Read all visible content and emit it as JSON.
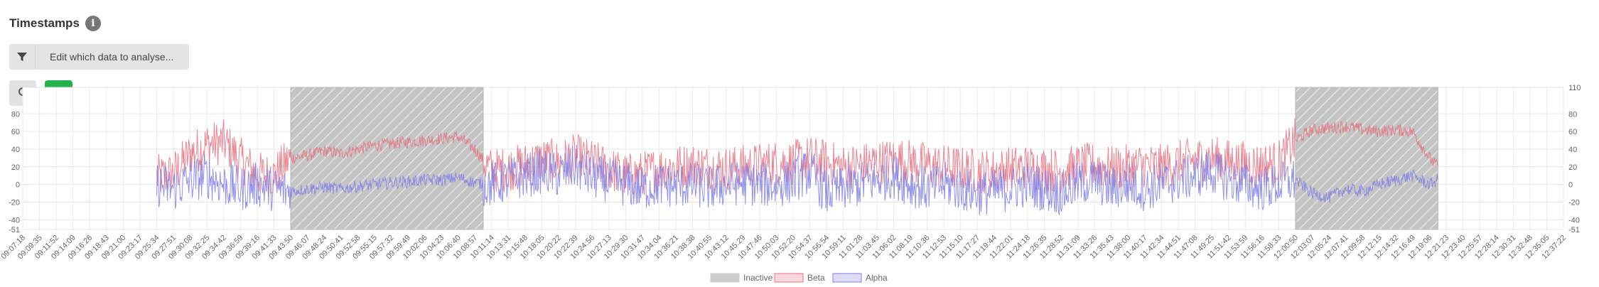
{
  "header": {
    "title": "Timestamps",
    "info_icon": "info-icon"
  },
  "filter": {
    "label": "Edit which data to analyse...",
    "icon": "filter-icon"
  },
  "toolbar": {
    "refresh_icon": "refresh-icon",
    "edit_icon": "edit-icon"
  },
  "colors": {
    "inactive": "#cccccc",
    "beta": "#e8707f",
    "alpha": "#7f7fe8",
    "edit_button": "#22b34a"
  },
  "chart_data": {
    "type": "line",
    "x_ticks": [
      "09:07:18",
      "09:09:35",
      "09:11:52",
      "09:14:09",
      "09:16:26",
      "09:18:43",
      "09:21:00",
      "09:23:17",
      "09:25:34",
      "09:27:51",
      "09:30:08",
      "09:32:25",
      "09:34:42",
      "09:36:59",
      "09:39:16",
      "09:41:33",
      "09:43:50",
      "09:46:07",
      "09:48:24",
      "09:50:41",
      "09:52:58",
      "09:55:15",
      "09:57:32",
      "09:59:49",
      "10:02:06",
      "10:04:23",
      "10:06:40",
      "10:08:57",
      "10:11:14",
      "10:13:31",
      "10:15:48",
      "10:18:05",
      "10:20:22",
      "10:22:39",
      "10:24:56",
      "10:27:13",
      "10:29:30",
      "10:31:47",
      "10:34:04",
      "10:36:21",
      "10:38:38",
      "10:40:55",
      "10:43:12",
      "10:45:29",
      "10:47:46",
      "10:50:03",
      "10:52:20",
      "10:54:37",
      "10:56:54",
      "10:59:11",
      "11:01:28",
      "11:03:45",
      "11:06:02",
      "11:08:19",
      "11:10:36",
      "11:12:53",
      "11:15:10",
      "11:17:27",
      "11:19:44",
      "11:22:01",
      "11:24:18",
      "11:26:35",
      "11:28:52",
      "11:31:09",
      "11:33:26",
      "11:35:43",
      "11:38:00",
      "11:40:17",
      "11:42:34",
      "11:44:51",
      "11:47:08",
      "11:49:25",
      "11:51:42",
      "11:53:59",
      "11:56:16",
      "11:58:33",
      "12:00:50",
      "12:03:07",
      "12:05:24",
      "12:07:41",
      "12:09:58",
      "12:12:15",
      "12:14:32",
      "12:16:49",
      "12:19:06",
      "12:21:23",
      "12:23:40",
      "12:25:57",
      "12:28:14",
      "12:30:31",
      "12:32:48",
      "12:35:05",
      "12:37:22"
    ],
    "y_ticks_left": [
      "80",
      "60",
      "40",
      "20",
      "0",
      "-20",
      "-40",
      "-51"
    ],
    "y_ticks_right": [
      "110",
      "80",
      "60",
      "40",
      "20",
      "0",
      "-20",
      "-40",
      "-51"
    ],
    "ylim": [
      -51,
      110
    ],
    "inactive_ranges": [
      [
        "09:43:50",
        "10:10:05"
      ],
      [
        "12:00:50",
        "12:20:15"
      ]
    ],
    "data_range": [
      "09:25:34",
      "12:20:15"
    ],
    "series": [
      {
        "name": "Beta",
        "points": [
          [
            "09:25:34",
            8
          ],
          [
            "09:27:51",
            12
          ],
          [
            "09:30:08",
            35
          ],
          [
            "09:32:25",
            45
          ],
          [
            "09:34:42",
            48
          ],
          [
            "09:36:59",
            28
          ],
          [
            "09:39:16",
            12
          ],
          [
            "09:41:33",
            10
          ],
          [
            "09:43:50",
            30
          ],
          [
            "09:46:07",
            33
          ],
          [
            "09:48:24",
            38
          ],
          [
            "09:50:41",
            35
          ],
          [
            "09:52:58",
            40
          ],
          [
            "09:55:15",
            44
          ],
          [
            "09:57:32",
            46
          ],
          [
            "09:59:49",
            48
          ],
          [
            "10:02:06",
            50
          ],
          [
            "10:04:23",
            52
          ],
          [
            "10:06:40",
            54
          ],
          [
            "10:08:57",
            40
          ],
          [
            "10:11:14",
            15
          ],
          [
            "10:13:31",
            18
          ],
          [
            "10:15:48",
            22
          ],
          [
            "10:18:05",
            28
          ],
          [
            "10:20:22",
            25
          ],
          [
            "10:22:39",
            32
          ],
          [
            "10:24:56",
            25
          ],
          [
            "10:27:13",
            18
          ],
          [
            "10:29:30",
            10
          ],
          [
            "10:31:47",
            12
          ],
          [
            "10:34:04",
            18
          ],
          [
            "10:36:21",
            20
          ],
          [
            "10:38:38",
            22
          ],
          [
            "10:40:55",
            20
          ],
          [
            "10:43:12",
            18
          ],
          [
            "10:45:29",
            20
          ],
          [
            "10:47:46",
            22
          ],
          [
            "10:50:03",
            25
          ],
          [
            "10:52:20",
            25
          ],
          [
            "10:54:37",
            30
          ],
          [
            "10:56:54",
            25
          ],
          [
            "10:59:11",
            20
          ],
          [
            "11:01:28",
            22
          ],
          [
            "11:03:45",
            25
          ],
          [
            "11:06:02",
            28
          ],
          [
            "11:08:19",
            26
          ],
          [
            "11:10:36",
            22
          ],
          [
            "11:12:53",
            20
          ],
          [
            "11:15:10",
            18
          ],
          [
            "11:17:27",
            15
          ],
          [
            "11:19:44",
            15
          ],
          [
            "11:22:01",
            18
          ],
          [
            "11:24:18",
            20
          ],
          [
            "11:26:35",
            18
          ],
          [
            "11:28:52",
            15
          ],
          [
            "11:31:09",
            20
          ],
          [
            "11:33:26",
            22
          ],
          [
            "11:35:43",
            18
          ],
          [
            "11:38:00",
            20
          ],
          [
            "11:40:17",
            22
          ],
          [
            "11:42:34",
            20
          ],
          [
            "11:44:51",
            25
          ],
          [
            "11:47:08",
            28
          ],
          [
            "11:49:25",
            30
          ],
          [
            "11:51:42",
            26
          ],
          [
            "11:53:59",
            24
          ],
          [
            "11:56:16",
            22
          ],
          [
            "11:58:33",
            25
          ],
          [
            "12:00:50",
            50
          ],
          [
            "12:03:07",
            62
          ],
          [
            "12:05:24",
            64
          ],
          [
            "12:07:41",
            66
          ],
          [
            "12:09:58",
            62
          ],
          [
            "12:12:15",
            60
          ],
          [
            "12:14:32",
            62
          ],
          [
            "12:16:49",
            60
          ],
          [
            "12:19:06",
            30
          ],
          [
            "12:20:15",
            20
          ]
        ]
      },
      {
        "name": "Alpha",
        "points": [
          [
            "09:25:34",
            0
          ],
          [
            "09:27:51",
            -5
          ],
          [
            "09:30:08",
            5
          ],
          [
            "09:32:25",
            10
          ],
          [
            "09:34:42",
            0
          ],
          [
            "09:36:59",
            -5
          ],
          [
            "09:39:16",
            0
          ],
          [
            "09:41:33",
            -5
          ],
          [
            "09:43:50",
            -8
          ],
          [
            "09:46:07",
            -5
          ],
          [
            "09:48:24",
            -3
          ],
          [
            "09:50:41",
            -5
          ],
          [
            "09:52:58",
            -2
          ],
          [
            "09:55:15",
            0
          ],
          [
            "09:57:32",
            2
          ],
          [
            "09:59:49",
            3
          ],
          [
            "10:02:06",
            5
          ],
          [
            "10:04:23",
            5
          ],
          [
            "10:06:40",
            8
          ],
          [
            "10:08:57",
            2
          ],
          [
            "10:11:14",
            0
          ],
          [
            "10:13:31",
            5
          ],
          [
            "10:15:48",
            10
          ],
          [
            "10:18:05",
            15
          ],
          [
            "10:20:22",
            10
          ],
          [
            "10:22:39",
            20
          ],
          [
            "10:24:56",
            8
          ],
          [
            "10:27:13",
            5
          ],
          [
            "10:29:30",
            0
          ],
          [
            "10:31:47",
            -5
          ],
          [
            "10:34:04",
            0
          ],
          [
            "10:36:21",
            -2
          ],
          [
            "10:38:38",
            0
          ],
          [
            "10:40:55",
            -5
          ],
          [
            "10:43:12",
            0
          ],
          [
            "10:45:29",
            2
          ],
          [
            "10:47:46",
            0
          ],
          [
            "10:50:03",
            -2
          ],
          [
            "10:52:20",
            5
          ],
          [
            "10:54:37",
            15
          ],
          [
            "10:56:54",
            -10
          ],
          [
            "10:59:11",
            -5
          ],
          [
            "11:01:28",
            0
          ],
          [
            "11:03:45",
            5
          ],
          [
            "11:06:02",
            10
          ],
          [
            "11:08:19",
            0
          ],
          [
            "11:10:36",
            -5
          ],
          [
            "11:12:53",
            0
          ],
          [
            "11:15:10",
            -5
          ],
          [
            "11:17:27",
            -10
          ],
          [
            "11:19:44",
            -8
          ],
          [
            "11:22:01",
            -5
          ],
          [
            "11:24:18",
            0
          ],
          [
            "11:26:35",
            -5
          ],
          [
            "11:28:52",
            -10
          ],
          [
            "11:31:09",
            0
          ],
          [
            "11:33:26",
            5
          ],
          [
            "11:35:43",
            -5
          ],
          [
            "11:38:00",
            0
          ],
          [
            "11:40:17",
            -5
          ],
          [
            "11:42:34",
            0
          ],
          [
            "11:44:51",
            5
          ],
          [
            "11:47:08",
            10
          ],
          [
            "11:49:25",
            15
          ],
          [
            "11:51:42",
            5
          ],
          [
            "11:53:59",
            0
          ],
          [
            "11:56:16",
            -5
          ],
          [
            "11:58:33",
            0
          ],
          [
            "12:00:50",
            5
          ],
          [
            "12:03:07",
            -10
          ],
          [
            "12:05:24",
            -15
          ],
          [
            "12:07:41",
            -5
          ],
          [
            "12:09:58",
            -8
          ],
          [
            "12:12:15",
            0
          ],
          [
            "12:14:32",
            5
          ],
          [
            "12:16:49",
            10
          ],
          [
            "12:19:06",
            0
          ],
          [
            "12:20:15",
            5
          ]
        ]
      }
    ],
    "legend": {
      "placement": "bottom-center",
      "items": [
        "Inactive",
        "Beta",
        "Alpha"
      ]
    },
    "grid": true
  }
}
